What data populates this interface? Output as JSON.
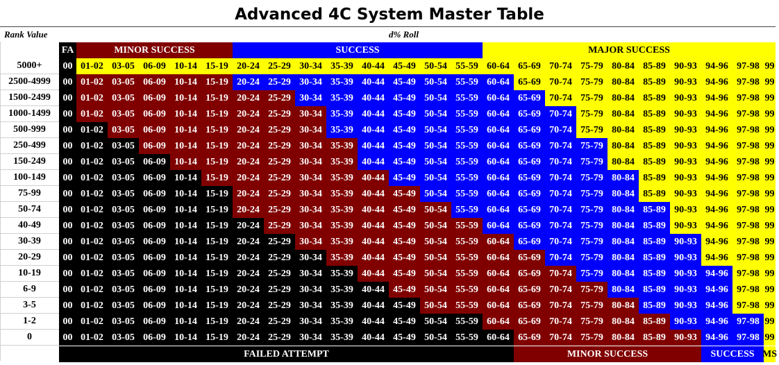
{
  "title": "Advanced 4C System Master Table",
  "row_header_label": "Rank Value",
  "column_header_label": "d% Roll",
  "colors": {
    "failed": "#000000",
    "minor": "#800000",
    "success": "#0000ff",
    "major": "#ffff00"
  },
  "top_bands": [
    {
      "label": "FA",
      "tier": "failed",
      "start": 0,
      "end": 0
    },
    {
      "label": "MINOR SUCCESS",
      "tier": "minor",
      "start": 1,
      "end": 5
    },
    {
      "label": "SUCCESS",
      "tier": "success",
      "start": 6,
      "end": 13
    },
    {
      "label": "MAJOR SUCCESS",
      "tier": "major",
      "start": 14,
      "end": 23
    }
  ],
  "bottom_bands": [
    {
      "label": "FAILED ATTEMPT",
      "tier": "failed",
      "start": 0,
      "end": 14
    },
    {
      "label": "MINOR SUCCESS",
      "tier": "minor",
      "start": 15,
      "end": 20
    },
    {
      "label": "SUCCESS",
      "tier": "success",
      "start": 21,
      "end": 22
    },
    {
      "label": "MS",
      "tier": "major",
      "start": 23,
      "end": 23
    }
  ],
  "columns": [
    "00",
    "01-02",
    "03-05",
    "06-09",
    "10-14",
    "15-19",
    "20-24",
    "25-29",
    "30-34",
    "35-39",
    "40-44",
    "45-49",
    "50-54",
    "55-59",
    "60-64",
    "65-69",
    "70-74",
    "75-79",
    "80-84",
    "85-89",
    "90-93",
    "94-96",
    "97-98",
    "99"
  ],
  "rows": [
    {
      "rank": "5000+",
      "thresholds": [
        1,
        1,
        1
      ]
    },
    {
      "rank": "2500-4999",
      "thresholds": [
        1,
        6,
        15
      ]
    },
    {
      "rank": "1500-2499",
      "thresholds": [
        1,
        8,
        16
      ]
    },
    {
      "rank": "1000-1499",
      "thresholds": [
        1,
        9,
        17
      ]
    },
    {
      "rank": "500-999",
      "thresholds": [
        2,
        9,
        17
      ]
    },
    {
      "rank": "250-499",
      "thresholds": [
        3,
        10,
        18
      ]
    },
    {
      "rank": "150-249",
      "thresholds": [
        4,
        10,
        18
      ]
    },
    {
      "rank": "100-149",
      "thresholds": [
        5,
        11,
        19
      ]
    },
    {
      "rank": "75-99",
      "thresholds": [
        6,
        12,
        19
      ]
    },
    {
      "rank": "50-74",
      "thresholds": [
        6,
        13,
        20
      ]
    },
    {
      "rank": "40-49",
      "thresholds": [
        7,
        14,
        20
      ]
    },
    {
      "rank": "30-39",
      "thresholds": [
        8,
        15,
        21
      ]
    },
    {
      "rank": "20-29",
      "thresholds": [
        9,
        16,
        21
      ]
    },
    {
      "rank": "10-19",
      "thresholds": [
        10,
        17,
        22
      ]
    },
    {
      "rank": "6-9",
      "thresholds": [
        11,
        18,
        22
      ]
    },
    {
      "rank": "3-5",
      "thresholds": [
        12,
        19,
        22
      ]
    },
    {
      "rank": "1-2",
      "thresholds": [
        14,
        20,
        23
      ]
    },
    {
      "rank": "0",
      "thresholds": [
        15,
        21,
        23
      ]
    }
  ]
}
